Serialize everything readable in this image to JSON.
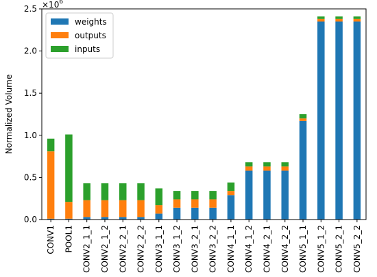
{
  "chart_data": {
    "type": "bar",
    "stacked": true,
    "ylabel": "Normalized Volume",
    "y_multiplier_label": "×10",
    "y_multiplier_exponent": "6",
    "ylim": [
      0,
      2.5
    ],
    "yticks": [
      0.0,
      0.5,
      1.0,
      1.5,
      2.0,
      2.5
    ],
    "ytick_labels": [
      "0.0",
      "0.5",
      "1.0",
      "1.5",
      "2.0",
      "2.5"
    ],
    "legend_position": "top-left",
    "categories": [
      "CONV1",
      "POOL1",
      "CONV2_1_1",
      "CONV2_1_2",
      "CONV2_2_1",
      "CONV2_2_2",
      "CONV3_1_1",
      "CONV3_1_2",
      "CONV3_2_1",
      "CONV3_2_2",
      "CONV4_1_1",
      "CONV4_1_2",
      "CONV4_2_1",
      "CONV4_2_2",
      "CONV5_1_1",
      "CONV5_1_2",
      "CONV5_2_1",
      "CONV5_2_2"
    ],
    "series": [
      {
        "name": "weights",
        "color": "#1f77b4",
        "values": [
          0.01,
          0.01,
          0.03,
          0.03,
          0.03,
          0.03,
          0.07,
          0.14,
          0.14,
          0.14,
          0.29,
          0.58,
          0.58,
          0.58,
          1.17,
          2.35,
          2.35,
          2.35
        ]
      },
      {
        "name": "outputs",
        "color": "#ff7f0e",
        "values": [
          0.8,
          0.2,
          0.2,
          0.2,
          0.2,
          0.2,
          0.1,
          0.1,
          0.1,
          0.1,
          0.05,
          0.05,
          0.05,
          0.05,
          0.03,
          0.03,
          0.03,
          0.03
        ]
      },
      {
        "name": "inputs",
        "color": "#2ca02c",
        "values": [
          0.15,
          0.8,
          0.2,
          0.2,
          0.2,
          0.2,
          0.2,
          0.1,
          0.1,
          0.1,
          0.1,
          0.05,
          0.05,
          0.05,
          0.05,
          0.03,
          0.03,
          0.03
        ]
      }
    ]
  }
}
